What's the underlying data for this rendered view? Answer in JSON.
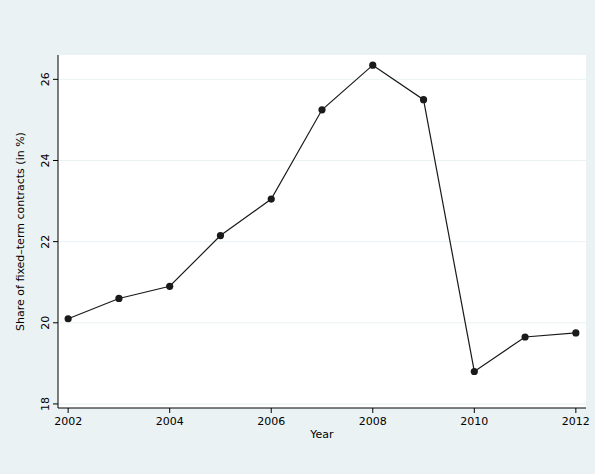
{
  "chart_data": {
    "type": "line",
    "x_label": "Year",
    "y_label": "Share of fixed–term contracts (in %)",
    "x": [
      2002,
      2003,
      2004,
      2005,
      2006,
      2007,
      2008,
      2009,
      2010,
      2011,
      2012
    ],
    "values": [
      20.1,
      20.6,
      20.9,
      22.15,
      23.05,
      25.25,
      26.35,
      25.5,
      18.8,
      19.65,
      19.75
    ],
    "color": "#1a1a1a",
    "marker": "circle",
    "line_style": "solid",
    "xlim": [
      2001.8,
      2012.2
    ],
    "xticks": [
      2002,
      2004,
      2006,
      2008,
      2010,
      2012
    ],
    "ylim": [
      17.9,
      26.6
    ],
    "yticks": [
      18,
      20,
      22,
      24,
      26
    ],
    "grid": true
  }
}
